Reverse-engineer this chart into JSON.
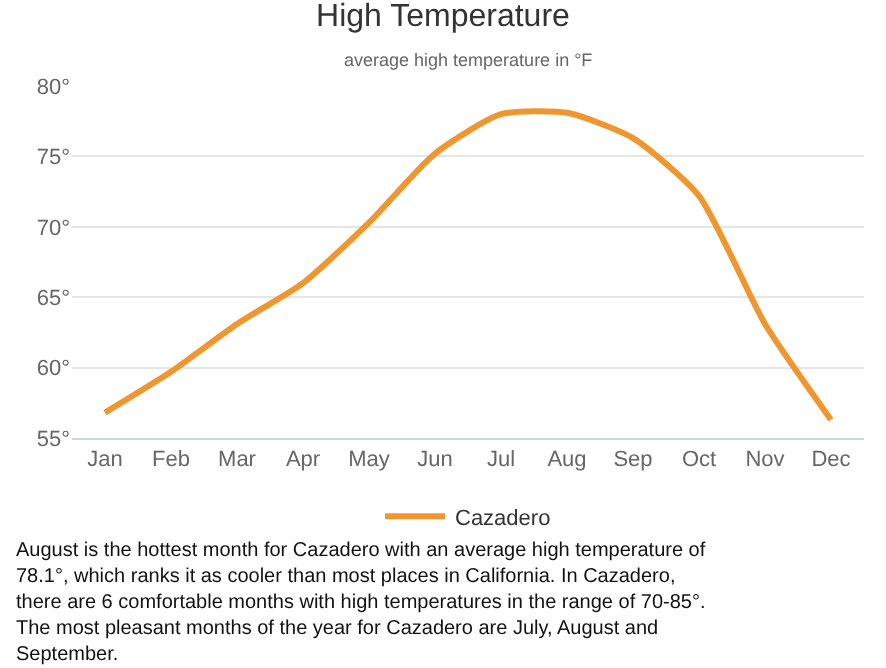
{
  "chart_data": {
    "type": "line",
    "title": "High Temperature",
    "subtitle": "average high temperature in °F",
    "categories": [
      "Jan",
      "Feb",
      "Mar",
      "Apr",
      "May",
      "Jun",
      "Jul",
      "Aug",
      "Sep",
      "Oct",
      "Nov",
      "Dec"
    ],
    "series": [
      {
        "name": "Cazadero",
        "color": "#f0962e",
        "values": [
          56.8,
          59.7,
          63.1,
          66.0,
          70.3,
          75.2,
          78.0,
          78.1,
          76.3,
          72.2,
          63.1,
          56.3
        ]
      }
    ],
    "ylim": [
      55,
      80
    ],
    "yticks": [
      {
        "value": 55,
        "label": "55°"
      },
      {
        "value": 60,
        "label": "60°"
      },
      {
        "value": 65,
        "label": "65°"
      },
      {
        "value": 70,
        "label": "70°"
      },
      {
        "value": 75,
        "label": "75°"
      },
      {
        "value": 80,
        "label": "80°"
      }
    ],
    "grid": "y",
    "legend": "bottom",
    "marker": "none",
    "line_style": "solid",
    "annotations": [
      "August is the hottest month for Cazadero with an average high temperature of 78.1°, which ranks it as cooler than most places in California. In Cazadero, there are 6 comfortable months with high temperatures in the range of 70-85°. The most pleasant months of the year for Cazadero are July, August and September."
    ]
  }
}
